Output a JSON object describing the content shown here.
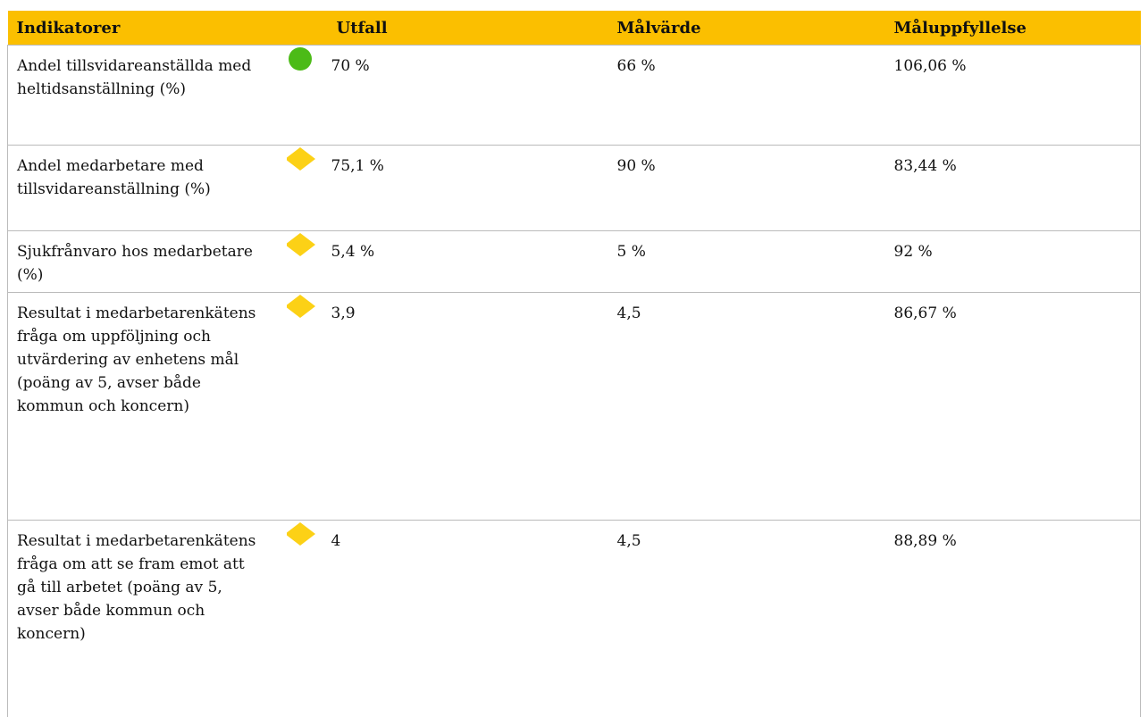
{
  "table": {
    "headers": [
      "Indikatorer",
      "Utfall",
      "Målvärde",
      "Måluppfyllelse"
    ],
    "rows": [
      [
        "Andel tillsvidareanställda med heltidsanställning (%)",
        "70 %",
        "66 %",
        "106,06 %"
      ],
      [
        "Andel medarbetare med tillsvidareanställning (%)",
        "75,1 %",
        "90 %",
        "83,44 %"
      ],
      [
        "Sjukfrånvaro hos medarbetare (%)",
        "5,4 %",
        "5 %",
        "92 %"
      ],
      [
        "Resultat i medarbetarenkätens fråga om uppföljning och utvärdering av enhetens mål (poäng av 5, avser både kommun och koncern)",
        "3,9",
        "4,5",
        "86,67 %"
      ],
      [
        "Resultat i medarbetarenkätens fråga om att se fram emot att gå till arbetet (poäng av 5, avser både kommun och koncern)",
        "4",
        "4,5",
        "88,89 %"
      ]
    ]
  }
}
